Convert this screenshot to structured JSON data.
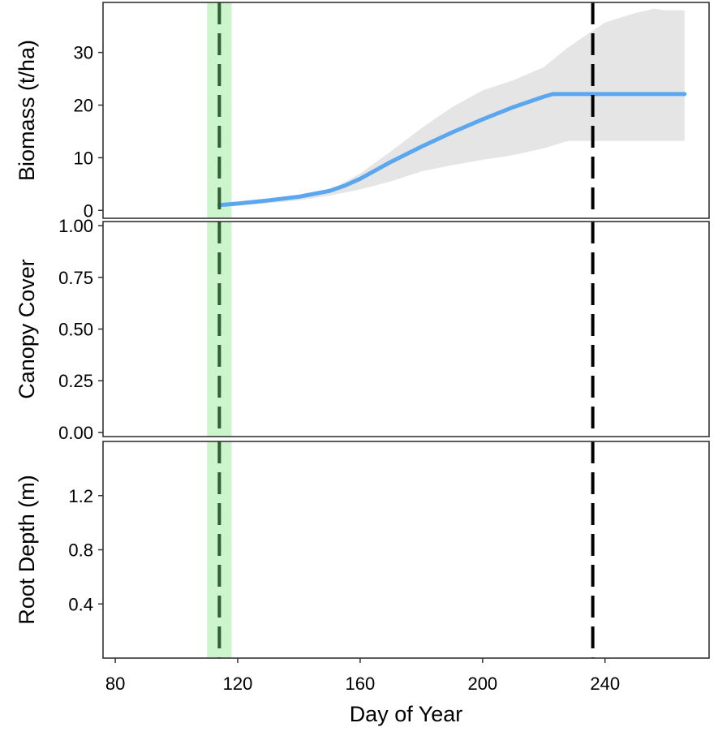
{
  "chart_data": {
    "type": "line",
    "shared_x": {
      "label": "Day of Year",
      "ticks": [
        80,
        120,
        160,
        200,
        240
      ],
      "xlim": [
        76,
        274
      ]
    },
    "markers": {
      "emergence_window": [
        110,
        118
      ],
      "emergence_day": 114,
      "emergence_color": "#ccf5cc",
      "emergence_line_color": "#2f5e30",
      "harvest_day": 236,
      "harvest_line_color": "#000000"
    },
    "panels": [
      {
        "id": "biomass",
        "ylabel": "Biomass (t/ha)",
        "ylim": [
          -1.5,
          39.5
        ],
        "yticks": [
          0,
          10,
          20,
          30
        ],
        "series": [
          {
            "kind": "line",
            "color": "#5aa6ef",
            "x": [
              114,
              120,
              130,
              140,
              150,
              155,
              160,
              165,
              170,
              180,
              190,
              200,
              210,
              220,
              223,
              230,
              240,
              250,
              260,
              266
            ],
            "y": [
              1.0,
              1.3,
              1.9,
              2.6,
              3.7,
              4.7,
              6.0,
              7.6,
              9.2,
              12.1,
              14.8,
              17.3,
              19.6,
              21.6,
              22.1,
              22.1,
              22.1,
              22.1,
              22.1,
              22.1
            ]
          },
          {
            "kind": "band",
            "color": "#e5e5e5",
            "x": [
              114,
              125,
              140,
              150,
              160,
              170,
              180,
              190,
              200,
              210,
              220,
              228,
              240,
              250,
              256,
              260,
              266
            ],
            "lower": [
              0.9,
              1.1,
              1.9,
              2.8,
              4.0,
              5.5,
              7.4,
              8.6,
              9.6,
              10.5,
              11.8,
              13.2,
              13.2,
              13.2,
              13.2,
              13.2,
              13.2
            ],
            "upper": [
              1.1,
              1.4,
              2.4,
              3.8,
              7.0,
              11.2,
              15.6,
              19.6,
              22.8,
              24.7,
              27.2,
              31.0,
              35.7,
              37.5,
              38.3,
              38.0,
              38.0
            ]
          }
        ]
      },
      {
        "id": "canopy",
        "ylabel": "Canopy Cover",
        "ylim": [
          -0.02,
          1.02
        ],
        "yticks": [
          "0.00",
          "0.25",
          "0.50",
          "0.75",
          "1.00"
        ],
        "series": []
      },
      {
        "id": "root",
        "ylabel": "Root Depth (m)",
        "ylim": [
          0,
          1.6
        ],
        "yticks": [
          "0.4",
          "0.8",
          "1.2"
        ],
        "series": []
      }
    ]
  }
}
